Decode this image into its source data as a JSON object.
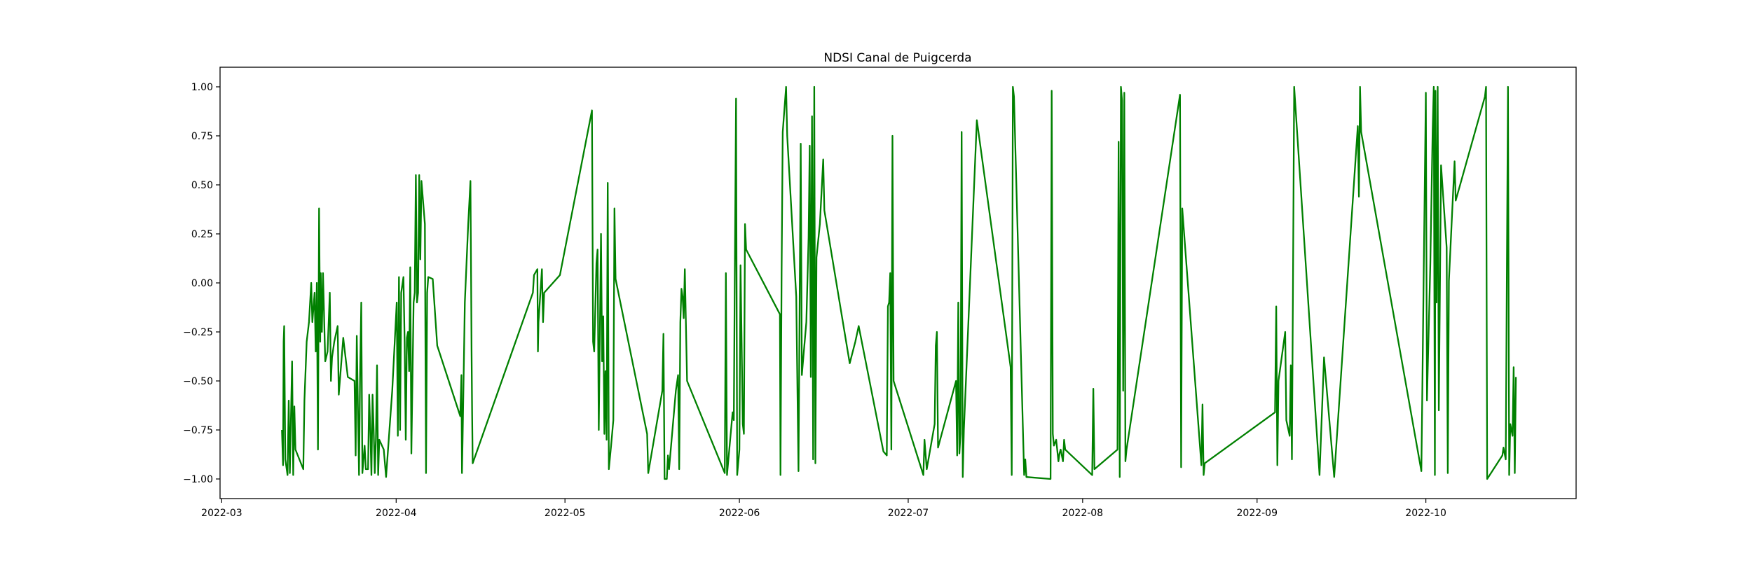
{
  "chart_data": {
    "type": "line",
    "title": "NDSI Canal de Puigcerda",
    "xlabel": "",
    "ylabel": "",
    "x_unit": "days since 2022-03-01",
    "xlim": [
      -0.3,
      240.7
    ],
    "ylim": [
      -1.1,
      1.1
    ],
    "grid": false,
    "line_color": "#008000",
    "xticks": [
      {
        "value": 0,
        "label": "2022-03"
      },
      {
        "value": 31,
        "label": "2022-04"
      },
      {
        "value": 61,
        "label": "2022-05"
      },
      {
        "value": 92,
        "label": "2022-06"
      },
      {
        "value": 122,
        "label": "2022-07"
      },
      {
        "value": 153,
        "label": "2022-08"
      },
      {
        "value": 184,
        "label": "2022-09"
      },
      {
        "value": 214,
        "label": "2022-10"
      }
    ],
    "yticks": [
      {
        "value": 1.0,
        "label": "1.00"
      },
      {
        "value": 0.75,
        "label": "0.75"
      },
      {
        "value": 0.5,
        "label": "0.50"
      },
      {
        "value": 0.25,
        "label": "0.25"
      },
      {
        "value": 0.0,
        "label": "0.00"
      },
      {
        "value": -0.25,
        "label": "−0.25"
      },
      {
        "value": -0.5,
        "label": "−0.50"
      },
      {
        "value": -0.75,
        "label": "−0.75"
      },
      {
        "value": -1.0,
        "label": "−1.00"
      }
    ],
    "series": [
      {
        "name": "NDSI",
        "x": [
          10.7,
          10.9,
          11.0,
          11.1,
          11.3,
          11.7,
          11.9,
          12.1,
          12.5,
          12.7,
          12.9,
          13.1,
          14.5,
          14.7,
          14.9,
          15.1,
          15.5,
          15.9,
          16.1,
          16.5,
          16.7,
          16.9,
          17.1,
          17.3,
          17.5,
          17.6,
          17.8,
          18.0,
          18.4,
          18.8,
          19.2,
          19.4,
          19.6,
          20.0,
          20.6,
          20.8,
          21.6,
          22.4,
          23.6,
          23.8,
          24.0,
          24.4,
          24.6,
          24.8,
          25.0,
          25.4,
          25.6,
          26.0,
          26.2,
          26.4,
          26.6,
          26.8,
          27.0,
          27.2,
          27.4,
          27.6,
          27.8,
          28.0,
          28.8,
          29.2,
          30.3,
          31.1,
          31.3,
          31.5,
          31.7,
          31.9,
          32.3,
          32.5,
          32.7,
          32.9,
          33.1,
          33.3,
          33.5,
          33.7,
          34.1,
          34.3,
          34.5,
          34.7,
          34.9,
          35.1,
          35.3,
          35.5,
          36.1,
          36.3,
          36.5,
          36.7,
          37.5,
          38.3,
          42.4,
          42.6,
          42.7,
          42.8,
          43.2,
          43.8,
          44.2,
          44.4,
          44.5,
          44.6,
          55.3,
          55.5,
          56.1,
          56.2,
          56.3,
          56.9,
          57.1,
          57.3,
          60.1,
          65.8,
          66.0,
          66.2,
          66.6,
          66.8,
          67.0,
          67.4,
          67.6,
          67.8,
          68.0,
          68.2,
          68.4,
          68.6,
          68.8,
          69.2,
          69.6,
          69.8,
          70.0,
          75.6,
          75.8,
          78.3,
          78.5,
          78.7,
          79.1,
          79.3,
          79.5,
          80.7,
          81.1,
          81.3,
          81.5,
          81.7,
          81.9,
          82.1,
          82.3,
          82.7,
          89.4,
          89.6,
          89.8,
          90.8,
          91.0,
          91.2,
          91.4,
          91.6,
          92.0,
          92.2,
          92.6,
          92.8,
          93.0,
          93.2,
          99.2,
          99.3,
          99.5,
          99.7,
          100.3,
          100.5,
          102.1,
          102.5,
          102.9,
          103.1,
          103.9,
          104.3,
          104.5,
          104.7,
          104.9,
          105.1,
          105.3,
          105.5,
          105.7,
          106.3,
          106.9,
          107.1,
          111.6,
          112.6,
          113.2,
          117.6,
          118.2,
          118.4,
          118.6,
          118.8,
          119.0,
          119.2,
          119.4,
          124.7,
          124.9,
          125.3,
          126.7,
          126.9,
          127.1,
          127.3,
          130.5,
          130.7,
          130.9,
          131.1,
          131.3,
          131.5,
          131.7,
          131.9,
          134.2,
          140.2,
          140.4,
          140.6,
          140.8,
          142.6,
          142.8,
          143.0,
          147.3,
          147.5,
          147.7,
          147.9,
          148.3,
          148.7,
          148.9,
          149.1,
          149.5,
          149.7,
          149.9,
          154.7,
          154.9,
          155.1,
          159.2,
          159.4,
          159.6,
          159.8,
          160.0,
          160.2,
          160.4,
          160.6,
          160.8,
          170.3,
          170.5,
          170.7,
          174.1,
          174.3,
          174.5,
          174.7,
          187.2,
          187.4,
          187.6,
          187.8,
          189.0,
          189.2,
          189.8,
          190.0,
          190.2,
          190.6,
          195.1,
          195.9,
          197.7,
          201.9,
          202.1,
          202.3,
          202.5,
          213.2,
          214.0,
          214.2,
          214.8,
          215.2,
          215.4,
          215.6,
          215.7,
          215.9,
          216.1,
          216.3,
          216.7,
          217.7,
          217.9,
          218.1,
          219.1,
          219.3,
          224.5,
          224.7,
          224.9,
          227.6,
          227.8,
          228.2,
          228.6,
          228.8,
          229.0,
          229.4,
          229.6,
          229.8,
          230.0
        ],
        "y": [
          -0.75,
          -0.93,
          -0.3,
          -0.22,
          -0.9,
          -0.98,
          -0.6,
          -0.97,
          -0.4,
          -0.98,
          -0.63,
          -0.85,
          -0.95,
          -0.6,
          -0.45,
          -0.3,
          -0.2,
          0.0,
          -0.2,
          -0.05,
          -0.35,
          0.0,
          -0.85,
          0.38,
          -0.3,
          0.05,
          -0.25,
          0.05,
          -0.4,
          -0.35,
          -0.05,
          -0.5,
          -0.38,
          -0.3,
          -0.22,
          -0.57,
          -0.28,
          -0.48,
          -0.5,
          -0.88,
          -0.27,
          -0.98,
          -0.45,
          -0.1,
          -0.97,
          -0.83,
          -0.95,
          -0.95,
          -0.57,
          -0.75,
          -0.98,
          -0.57,
          -0.75,
          -0.97,
          -0.8,
          -0.42,
          -0.98,
          -0.8,
          -0.85,
          -0.99,
          -0.55,
          -0.1,
          -0.78,
          0.03,
          -0.75,
          -0.05,
          0.03,
          -0.3,
          -0.8,
          -0.28,
          -0.25,
          -0.45,
          0.08,
          -0.87,
          -0.1,
          -0.05,
          0.55,
          -0.1,
          -0.05,
          0.55,
          0.12,
          0.52,
          0.3,
          -0.97,
          -0.05,
          0.03,
          0.02,
          -0.32,
          -0.68,
          -0.47,
          -0.97,
          -0.8,
          -0.1,
          0.3,
          0.52,
          -0.35,
          -0.67,
          -0.92,
          -0.05,
          0.04,
          0.07,
          -0.35,
          -0.2,
          0.07,
          -0.2,
          -0.05,
          0.04,
          0.88,
          -0.3,
          -0.35,
          0.1,
          0.17,
          -0.75,
          0.25,
          -0.4,
          -0.17,
          -0.77,
          -0.45,
          -0.8,
          0.51,
          -0.95,
          -0.83,
          -0.7,
          0.38,
          0.02,
          -0.77,
          -0.97,
          -0.55,
          -0.26,
          -1.0,
          -1.0,
          -0.88,
          -0.95,
          -0.55,
          -0.47,
          -0.95,
          -0.2,
          -0.03,
          -0.07,
          -0.18,
          0.07,
          -0.5,
          -0.97,
          0.05,
          -0.98,
          -0.66,
          -0.7,
          0.14,
          0.94,
          -0.98,
          -0.85,
          0.09,
          -0.72,
          -0.77,
          0.3,
          0.17,
          -0.16,
          -0.98,
          0.05,
          0.77,
          1.0,
          0.75,
          -0.07,
          -0.96,
          0.71,
          -0.47,
          -0.2,
          0.23,
          0.7,
          -0.48,
          0.85,
          -0.9,
          1.0,
          -0.92,
          0.13,
          0.3,
          0.63,
          0.37,
          -0.41,
          -0.3,
          -0.22,
          -0.86,
          -0.88,
          -0.12,
          -0.1,
          0.05,
          -0.85,
          0.75,
          -0.5,
          -0.98,
          -0.8,
          -0.95,
          -0.72,
          -0.32,
          -0.25,
          -0.84,
          -0.5,
          -0.88,
          -0.1,
          -0.87,
          -0.77,
          0.77,
          -0.99,
          -0.75,
          0.83,
          -0.43,
          -0.98,
          1.0,
          0.95,
          -0.98,
          -0.9,
          -0.99,
          -1.0,
          0.98,
          -0.77,
          -0.83,
          -0.8,
          -0.91,
          -0.87,
          -0.85,
          -0.91,
          -0.8,
          -0.85,
          -0.98,
          -0.54,
          -0.95,
          -0.85,
          0.72,
          -0.99,
          1.0,
          0.93,
          -0.55,
          0.97,
          -0.91,
          -0.85,
          0.96,
          -0.94,
          0.38,
          -0.93,
          -0.62,
          -0.98,
          -0.92,
          -0.66,
          -0.12,
          -0.93,
          -0.5,
          -0.25,
          -0.7,
          -0.78,
          -0.42,
          -0.9,
          1.0,
          -0.98,
          -0.38,
          -0.99,
          0.8,
          0.44,
          1.0,
          0.77,
          -0.96,
          0.97,
          -0.6,
          0.1,
          0.78,
          1.0,
          -0.98,
          0.98,
          -0.1,
          1.0,
          -0.65,
          0.6,
          0.18,
          -0.97,
          0.01,
          0.62,
          0.42,
          0.95,
          1.0,
          -1.0,
          -0.88,
          -0.84,
          -0.9,
          1.0,
          -0.98,
          -0.72,
          -0.78,
          -0.43,
          -0.97,
          -0.48
        ]
      }
    ]
  }
}
